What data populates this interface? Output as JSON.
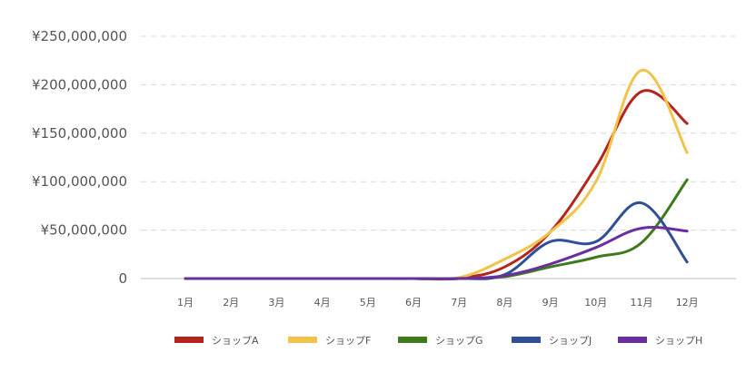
{
  "chart_data": {
    "type": "line",
    "title": "",
    "xlabel": "",
    "ylabel": "",
    "categories": [
      "1月",
      "2月",
      "3月",
      "4月",
      "5月",
      "6月",
      "7月",
      "8月",
      "9月",
      "10月",
      "11月",
      "12月"
    ],
    "y_ticks": [
      {
        "value": 0,
        "label": "0"
      },
      {
        "value": 50000000,
        "label": "¥50,000,000"
      },
      {
        "value": 100000000,
        "label": "¥100,000,000"
      },
      {
        "value": 150000000,
        "label": "¥150,000,000"
      },
      {
        "value": 200000000,
        "label": "¥200,000,000"
      },
      {
        "value": 250000000,
        "label": "¥250,000,000"
      }
    ],
    "ylim": [
      0,
      250000000
    ],
    "grid": true,
    "legend_position": "bottom",
    "series": [
      {
        "name": "ショップA",
        "color": "#B5251C",
        "values": [
          0,
          0,
          0,
          0,
          0,
          0,
          500000,
          12000000,
          48000000,
          115000000,
          193000000,
          160000000
        ]
      },
      {
        "name": "ショップF",
        "color": "#F2C34A",
        "values": [
          0,
          0,
          0,
          0,
          0,
          0,
          1000000,
          20000000,
          48000000,
          100000000,
          215000000,
          130000000
        ]
      },
      {
        "name": "ショップG",
        "color": "#3F7A1C",
        "values": [
          0,
          0,
          0,
          0,
          0,
          0,
          0,
          2000000,
          12000000,
          22000000,
          37000000,
          102000000
        ]
      },
      {
        "name": "ショップJ",
        "color": "#2F4F96",
        "values": [
          0,
          0,
          0,
          0,
          0,
          0,
          0,
          4000000,
          38000000,
          38000000,
          78000000,
          17000000
        ]
      },
      {
        "name": "ショップH",
        "color": "#6B2E9E",
        "values": [
          0,
          0,
          0,
          0,
          0,
          0,
          0,
          3000000,
          15000000,
          32000000,
          52000000,
          49000000
        ]
      }
    ]
  }
}
